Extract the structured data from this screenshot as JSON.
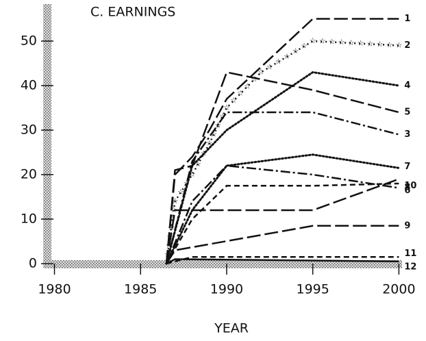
{
  "chart_data": {
    "type": "line",
    "title": "C. EARNINGS",
    "xlabel": "YEAR",
    "xlim": [
      1979.9,
      2000.7
    ],
    "ylim": [
      -1,
      57
    ],
    "xticks": [
      1980,
      1985,
      1990,
      1995,
      2000
    ],
    "yticks": [
      0,
      10,
      20,
      30,
      40,
      50
    ],
    "color": "#111",
    "series": [
      {
        "name": "1",
        "style": "long-dash",
        "x": [
          1986.5,
          1987,
          1988,
          1989,
          1990,
          1995,
          2000
        ],
        "values": [
          0,
          20,
          24,
          30,
          37,
          55,
          55
        ]
      },
      {
        "name": "2",
        "style": "stars",
        "x": [
          1986.5,
          1987,
          1988,
          1989,
          1990,
          1992,
          1995,
          2000
        ],
        "values": [
          0,
          14,
          20,
          27,
          35,
          43,
          50,
          49
        ]
      },
      {
        "name": "4",
        "style": "dotted",
        "x": [
          1986.5,
          1988,
          1990,
          1995,
          2000
        ],
        "values": [
          0,
          22,
          30,
          43,
          40
        ]
      },
      {
        "name": "5",
        "style": "long-dash",
        "x": [
          1986.5,
          1987,
          1988,
          1990,
          1995,
          2000
        ],
        "values": [
          0,
          21,
          22,
          43,
          39,
          34
        ]
      },
      {
        "name": "3",
        "style": "dash-dot",
        "x": [
          1986.5,
          1988,
          1990,
          1995,
          2000
        ],
        "values": [
          0,
          23,
          34,
          34,
          29
        ]
      },
      {
        "name": "7",
        "style": "dotted",
        "x": [
          1986.5,
          1988,
          1990,
          1995,
          2000
        ],
        "values": [
          0,
          12,
          22,
          24.5,
          21.5
        ]
      },
      {
        "name": "6",
        "style": "dash-dot",
        "x": [
          1986.5,
          1988,
          1990,
          1995,
          2000
        ],
        "values": [
          0,
          14,
          22,
          20,
          17
        ]
      },
      {
        "name": "8",
        "style": "short-dash",
        "x": [
          1986.5,
          1988,
          1990,
          1995,
          2000
        ],
        "values": [
          0,
          10,
          17.5,
          17.5,
          18
        ]
      },
      {
        "name": "10",
        "style": "long-dash",
        "x": [
          1986.5,
          1987,
          1988,
          1995,
          2000
        ],
        "values": [
          0,
          12,
          12,
          12,
          19
        ]
      },
      {
        "name": "9",
        "style": "long-dash",
        "x": [
          1986.5,
          1987,
          1995,
          2000
        ],
        "values": [
          0,
          3,
          8.5,
          8.5
        ]
      },
      {
        "name": "11",
        "style": "short-dash",
        "x": [
          1986.5,
          1988,
          2000
        ],
        "values": [
          0,
          1.5,
          1.5
        ]
      },
      {
        "name": "12",
        "style": "solid",
        "x": [
          1986.5,
          1987,
          2000
        ],
        "values": [
          0,
          1,
          0.5
        ]
      }
    ]
  }
}
